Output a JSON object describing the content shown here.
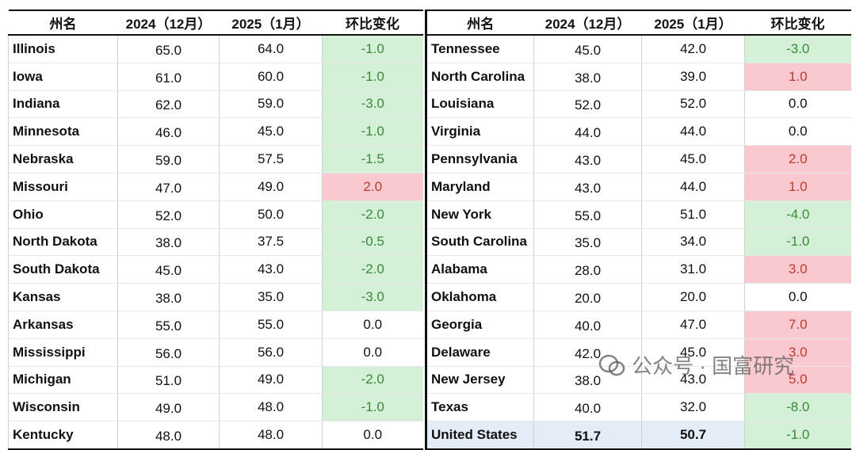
{
  "header": [
    "州名",
    "2024（12月）",
    "2025（1月）",
    "环比变化"
  ],
  "left": {
    "rows": [
      [
        "Illinois",
        "65.0",
        "64.0",
        "-1.0"
      ],
      [
        "Iowa",
        "61.0",
        "60.0",
        "-1.0"
      ],
      [
        "Indiana",
        "62.0",
        "59.0",
        "-3.0"
      ],
      [
        "Minnesota",
        "46.0",
        "45.0",
        "-1.0"
      ],
      [
        "Nebraska",
        "59.0",
        "57.5",
        "-1.5"
      ],
      [
        "Missouri",
        "47.0",
        "49.0",
        "2.0"
      ],
      [
        "Ohio",
        "52.0",
        "50.0",
        "-2.0"
      ],
      [
        "North Dakota",
        "38.0",
        "37.5",
        "-0.5"
      ],
      [
        "South Dakota",
        "45.0",
        "43.0",
        "-2.0"
      ],
      [
        "Kansas",
        "38.0",
        "35.0",
        "-3.0"
      ],
      [
        "Arkansas",
        "55.0",
        "55.0",
        "0.0"
      ],
      [
        "Mississippi",
        "56.0",
        "56.0",
        "0.0"
      ],
      [
        "Michigan",
        "51.0",
        "49.0",
        "-2.0"
      ],
      [
        "Wisconsin",
        "49.0",
        "48.0",
        "-1.0"
      ],
      [
        "Kentucky",
        "48.0",
        "48.0",
        "0.0"
      ]
    ]
  },
  "right": {
    "rows": [
      [
        "Tennessee",
        "45.0",
        "42.0",
        "-3.0"
      ],
      [
        "North Carolina",
        "38.0",
        "39.0",
        "1.0"
      ],
      [
        "Louisiana",
        "52.0",
        "52.0",
        "0.0"
      ],
      [
        "Virginia",
        "44.0",
        "44.0",
        "0.0"
      ],
      [
        "Pennsylvania",
        "43.0",
        "45.0",
        "2.0"
      ],
      [
        "Maryland",
        "43.0",
        "44.0",
        "1.0"
      ],
      [
        "New York",
        "55.0",
        "51.0",
        "-4.0"
      ],
      [
        "South Carolina",
        "35.0",
        "34.0",
        "-1.0"
      ],
      [
        "Alabama",
        "28.0",
        "31.0",
        "3.0"
      ],
      [
        "Oklahoma",
        "20.0",
        "20.0",
        "0.0"
      ],
      [
        "Georgia",
        "40.0",
        "47.0",
        "7.0"
      ],
      [
        "Delaware",
        "42.0",
        "45.0",
        "3.0"
      ],
      [
        "New Jersey",
        "38.0",
        "43.0",
        "5.0"
      ],
      [
        "Texas",
        "40.0",
        "32.0",
        "-8.0"
      ],
      [
        "United States",
        "51.7",
        "50.7",
        "-1.0"
      ]
    ]
  },
  "watermark": "公众号 · 国富研究"
}
